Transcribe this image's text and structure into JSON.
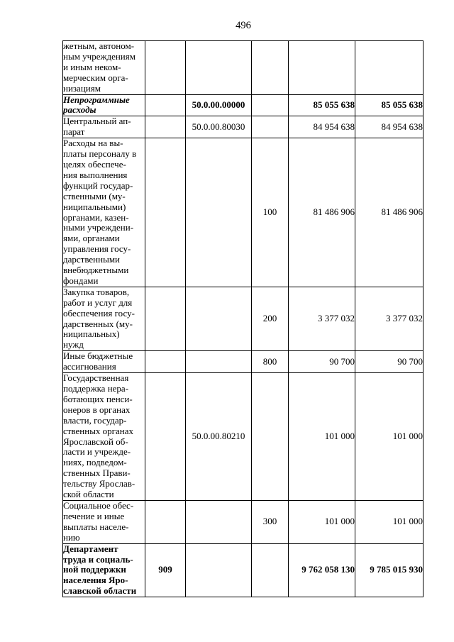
{
  "page": {
    "number": "496"
  },
  "table": {
    "rows": [
      {
        "name": "жетным, автоном-\nным учреждениям\nи иным неком-\nмерческим орга-\nнизациям",
        "gvr": "",
        "code": "",
        "vr": "",
        "amount1": "",
        "amount2": ""
      },
      {
        "name": "Непрограммные\nрасходы",
        "gvr": "",
        "code": "50.0.00.00000",
        "vr": "",
        "amount1": "85 055 638",
        "amount2": "85 055 638"
      },
      {
        "name": "Центральный ап-\nпарат",
        "gvr": "",
        "code": "50.0.00.80030",
        "vr": "",
        "amount1": "84 954 638",
        "amount2": "84 954 638"
      },
      {
        "name": "Расходы на вы-\nплаты персоналу в\nцелях обеспече-\nния выполнения\nфункций государ-\nственными (му-\nниципальными)\nорганами, казен-\nными учреждени-\nями, органами\nуправления госу-\nдарственными\nвнебюджетными\nфондами",
        "gvr": "",
        "code": "",
        "vr": "100",
        "amount1": "81 486 906",
        "amount2": "81 486 906"
      },
      {
        "name": "Закупка товаров,\nработ и услуг для\nобеспечения госу-\nдарственных (му-\nниципальных)\nнужд",
        "gvr": "",
        "code": "",
        "vr": "200",
        "amount1": "3 377 032",
        "amount2": "3 377 032"
      },
      {
        "name": "Иные бюджетные\nассигнования",
        "gvr": "",
        "code": "",
        "vr": "800",
        "amount1": "90 700",
        "amount2": "90 700"
      },
      {
        "name": "Государственная\nподдержка нера-\nботающих пенси-\nонеров в органах\nвласти, государ-\nственных органах\nЯрославской об-\nласти и учрежде-\nниях, подведом-\nственных Прави-\nтельству Ярослав-\nской области",
        "gvr": "",
        "code": "50.0.00.80210",
        "vr": "",
        "amount1": "101 000",
        "amount2": "101 000"
      },
      {
        "name": "Социальное обес-\nпечение и иные\nвыплаты населе-\nнию",
        "gvr": "",
        "code": "",
        "vr": "300",
        "amount1": "101 000",
        "amount2": "101 000"
      },
      {
        "name": "Департамент\nтруда и социаль-\nной поддержки\nнаселения Яро-\nславской области",
        "gvr": "909",
        "code": "",
        "vr": "",
        "amount1": "9 762 058 130",
        "amount2": "9 785 015 930"
      }
    ]
  }
}
